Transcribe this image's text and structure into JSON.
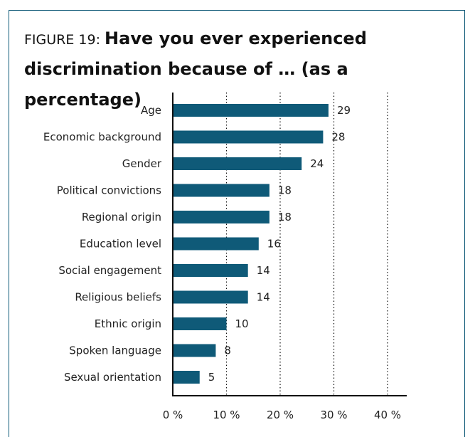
{
  "figure": {
    "label": "FIGURE 19: ",
    "title": "Have you ever experienced discrimination because of … (as a percentage)"
  },
  "colors": {
    "bar": "#0f5a78",
    "axis": "#111111",
    "frame": "#0f5a78"
  },
  "chart_data": {
    "type": "bar",
    "orientation": "horizontal",
    "title": "Have you ever experienced discrimination because of … (as a percentage)",
    "categories": [
      "Age",
      "Economic background",
      "Gender",
      "Political convictions",
      "Regional origin",
      "Education level",
      "Social engagement",
      "Religious beliefs",
      "Ethnic origin",
      "Spoken language",
      "Sexual orientation"
    ],
    "values": [
      29,
      28,
      24,
      18,
      18,
      16,
      14,
      14,
      10,
      8,
      5
    ],
    "value_labels": [
      "29",
      "28",
      "24",
      "18",
      "18",
      "16",
      "14",
      "14",
      "10",
      "8",
      "5"
    ],
    "xlim": [
      0,
      40
    ],
    "xticks": [
      0,
      10,
      20,
      30,
      40
    ],
    "xtick_labels": [
      "0 %",
      "10 %",
      "20 %",
      "30 %",
      "40 %"
    ],
    "grid": "vertical dotted"
  }
}
